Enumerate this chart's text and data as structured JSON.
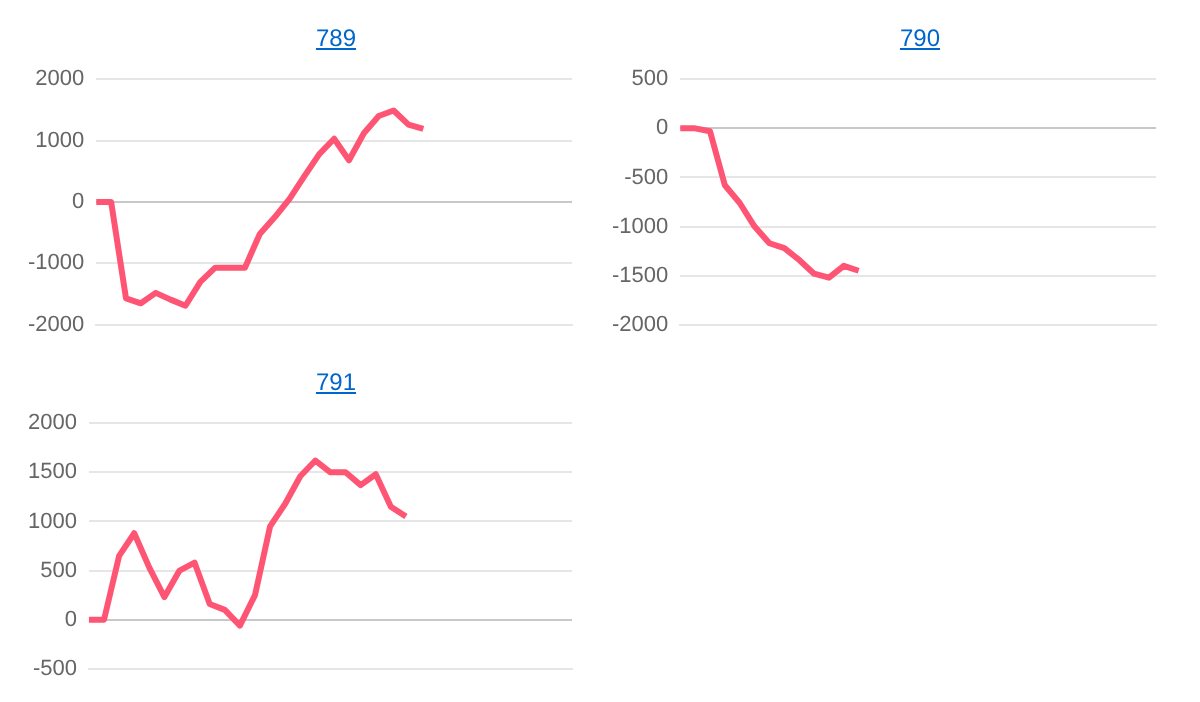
{
  "chart_data": [
    {
      "type": "line",
      "title": "789",
      "categories": [
        null,
        null,
        null,
        null,
        null,
        null,
        null,
        null,
        null,
        null,
        null,
        null,
        null,
        null,
        null,
        null,
        null,
        null,
        null,
        null,
        null,
        null,
        null,
        null,
        null,
        null,
        null,
        null,
        null,
        null,
        null,
        null,
        null
      ],
      "series": [
        {
          "color": "#ff5574",
          "values": [
            0,
            0,
            -1570,
            -1650,
            -1480,
            -1590,
            -1690,
            -1300,
            -1070,
            -1070,
            -1070,
            -520,
            -250,
            50,
            420,
            780,
            1030,
            680,
            1120,
            1400,
            1490,
            1260,
            1190,
            null,
            null,
            null,
            null,
            null,
            null,
            null,
            null,
            null,
            null
          ]
        }
      ],
      "ylim": [
        -2000,
        2000
      ],
      "yticks": [
        -2000,
        -1000,
        0,
        1000,
        2000
      ],
      "grid": "y",
      "tick_labels": "y",
      "marker": "none",
      "line_style": "solid"
    },
    {
      "type": "line",
      "title": "790",
      "categories": [
        null,
        null,
        null,
        null,
        null,
        null,
        null,
        null,
        null,
        null,
        null,
        null,
        null,
        null,
        null,
        null,
        null,
        null,
        null,
        null,
        null,
        null,
        null,
        null,
        null,
        null,
        null,
        null,
        null,
        null,
        null,
        null,
        null
      ],
      "series": [
        {
          "color": "#ff5574",
          "values": [
            0,
            0,
            -30,
            -580,
            -760,
            -1000,
            -1170,
            -1220,
            -1340,
            -1480,
            -1520,
            -1400,
            -1450,
            null,
            null,
            null,
            null,
            null,
            null,
            null,
            null,
            null,
            null,
            null,
            null,
            null,
            null,
            null,
            null,
            null,
            null,
            null,
            null
          ]
        }
      ],
      "ylim": [
        -2000,
        500
      ],
      "yticks": [
        -2000,
        -1500,
        -1000,
        -500,
        0,
        500
      ],
      "grid": "y",
      "tick_labels": "y",
      "marker": "none",
      "line_style": "solid"
    },
    {
      "type": "line",
      "title": "791",
      "categories": [
        null,
        null,
        null,
        null,
        null,
        null,
        null,
        null,
        null,
        null,
        null,
        null,
        null,
        null,
        null,
        null,
        null,
        null,
        null,
        null,
        null,
        null,
        null,
        null,
        null,
        null,
        null,
        null,
        null,
        null,
        null,
        null,
        null
      ],
      "series": [
        {
          "color": "#ff5574",
          "values": [
            0,
            0,
            650,
            880,
            530,
            230,
            500,
            580,
            160,
            100,
            -60,
            250,
            950,
            1180,
            1460,
            1620,
            1500,
            1500,
            1370,
            1480,
            1150,
            1050,
            null,
            null,
            null,
            null,
            null,
            null,
            null,
            null,
            null,
            null,
            null
          ]
        }
      ],
      "ylim": [
        -500,
        2000
      ],
      "yticks": [
        -500,
        0,
        500,
        1000,
        1500,
        2000
      ],
      "grid": "y",
      "tick_labels": "y",
      "marker": "none",
      "line_style": "solid"
    }
  ]
}
